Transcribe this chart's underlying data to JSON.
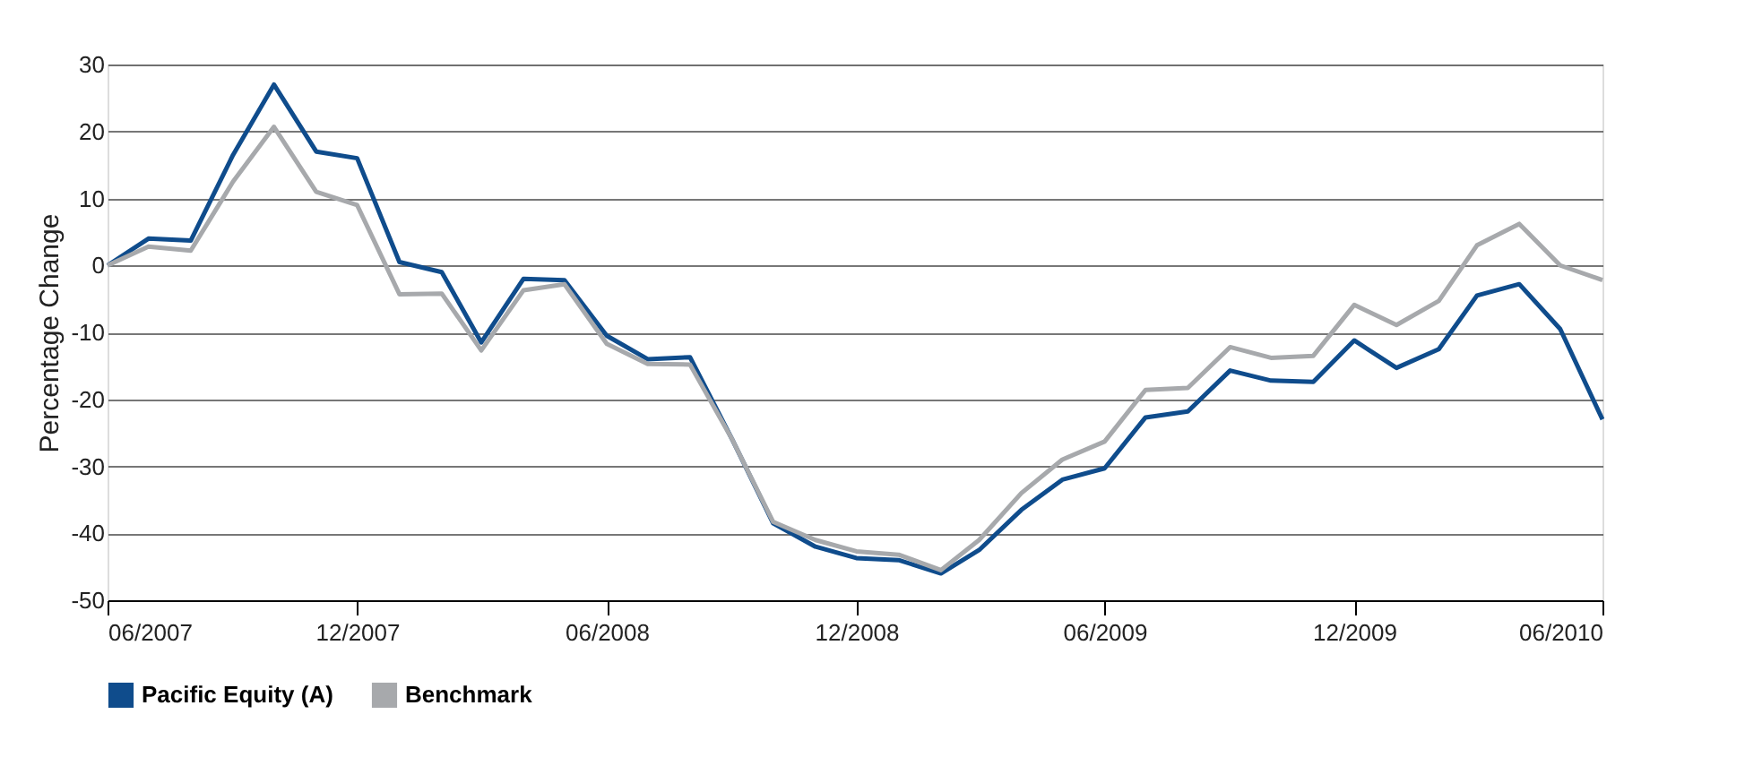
{
  "chart_data": {
    "type": "line",
    "ylabel": "Percentage Change",
    "x": [
      "2007-06",
      "2007-07",
      "2007-08",
      "2007-09",
      "2007-10",
      "2007-11",
      "2007-12",
      "2008-01",
      "2008-02",
      "2008-03",
      "2008-04",
      "2008-05",
      "2008-06",
      "2008-07",
      "2008-08",
      "2008-09",
      "2008-10",
      "2008-11",
      "2008-12",
      "2009-01",
      "2009-02",
      "2009-03",
      "2009-04",
      "2009-05",
      "2009-06",
      "2009-07",
      "2009-08",
      "2009-09",
      "2009-10",
      "2009-11",
      "2009-12",
      "2010-01",
      "2010-02",
      "2010-03",
      "2010-04",
      "2010-05",
      "2010-06"
    ],
    "series": [
      {
        "name": "Pacific Equity (A)",
        "color": "#0f4c8c",
        "values": [
          0,
          4,
          3.7,
          16.5,
          27,
          17,
          16,
          0.5,
          -1,
          -11.5,
          -2,
          -2.2,
          -10.5,
          -14,
          -13.7,
          -26,
          -38.5,
          -42,
          -43.7,
          -44,
          -46,
          -42.5,
          -36.5,
          -32,
          -30.3,
          -22.7,
          -21.8,
          -15.7,
          -17.2,
          -17.4,
          -11.2,
          -15.3,
          -12.5,
          -4.5,
          -2.8,
          -9.5,
          -23
        ]
      },
      {
        "name": "Benchmark",
        "color": "#a7a9ac",
        "values": [
          0,
          2.8,
          2.2,
          12.5,
          20.7,
          11,
          9,
          -4.3,
          -4.2,
          -12.7,
          -3.7,
          -2.8,
          -11.7,
          -14.7,
          -14.8,
          -26,
          -38.3,
          -41,
          -42.7,
          -43.2,
          -45.5,
          -41,
          -34,
          -29,
          -26.3,
          -18.6,
          -18.3,
          -12.2,
          -13.8,
          -13.5,
          -5.9,
          -8.9,
          -5.3,
          3,
          6.2,
          0,
          -2.2
        ]
      }
    ],
    "xlim": [
      "2007-06",
      "2010-06"
    ],
    "xticks": [
      {
        "value": "2007-06",
        "label": "06/2007"
      },
      {
        "value": "2007-12",
        "label": "12/2007"
      },
      {
        "value": "2008-06",
        "label": "06/2008"
      },
      {
        "value": "2008-12",
        "label": "12/2008"
      },
      {
        "value": "2009-06",
        "label": "06/2009"
      },
      {
        "value": "2009-12",
        "label": "12/2009"
      },
      {
        "value": "2010-06",
        "label": "06/2010"
      }
    ],
    "ylim": [
      -50,
      30
    ],
    "yticks": [
      -50,
      -40,
      -30,
      -20,
      -10,
      0,
      10,
      20,
      30
    ],
    "grid": "y",
    "legend": "bottom",
    "marker": "none",
    "line_style": "solid"
  }
}
